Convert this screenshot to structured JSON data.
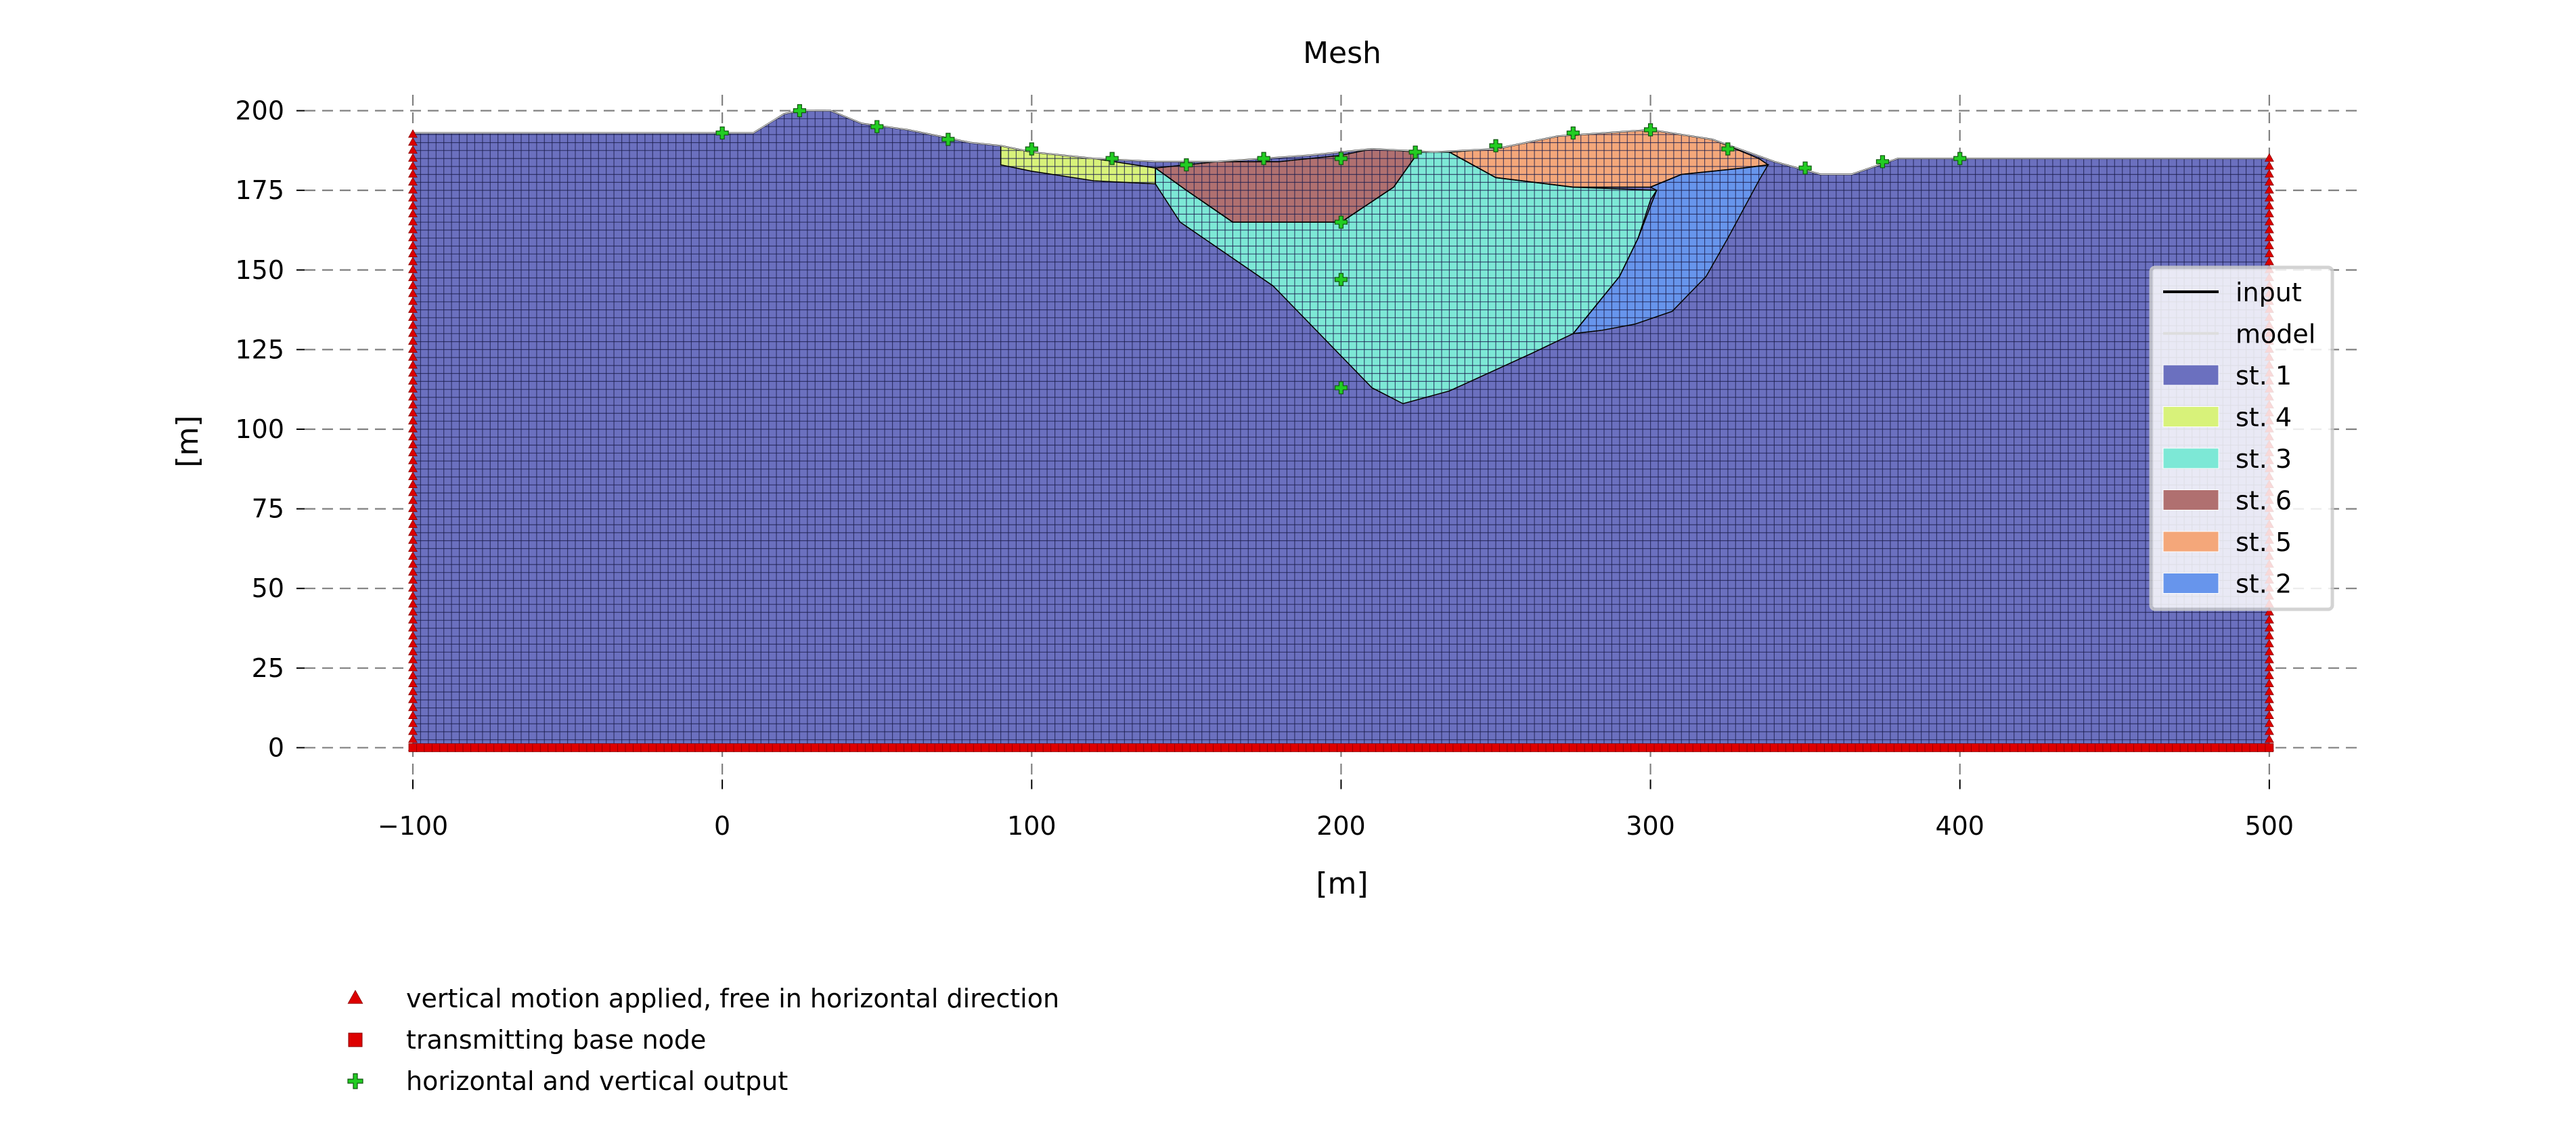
{
  "chart_data": {
    "type": "area",
    "title": "Mesh",
    "xlabel": "[m]",
    "ylabel": "[m]",
    "xlim": [
      -135,
      530
    ],
    "ylim": [
      -15,
      205
    ],
    "xticks": [
      -100,
      0,
      100,
      200,
      300,
      400,
      500
    ],
    "yticks": [
      0,
      25,
      50,
      75,
      100,
      125,
      150,
      175,
      200
    ],
    "grid": true,
    "grid_style": "dashed",
    "legend_position": "right",
    "mesh_spacing_m": 2.5,
    "boundary_line": {
      "name": "input",
      "color": "#000000",
      "points": [
        [
          -100,
          193
        ],
        [
          10,
          193
        ],
        [
          20,
          199
        ],
        [
          25,
          200
        ],
        [
          35,
          200
        ],
        [
          45,
          196
        ],
        [
          60,
          194
        ],
        [
          80,
          190
        ],
        [
          90,
          189
        ],
        [
          100,
          187
        ],
        [
          120,
          185
        ],
        [
          140,
          184
        ],
        [
          160,
          184
        ],
        [
          175,
          185
        ],
        [
          190,
          186
        ],
        [
          210,
          188
        ],
        [
          230,
          187
        ],
        [
          250,
          188
        ],
        [
          270,
          192
        ],
        [
          300,
          194
        ],
        [
          320,
          191
        ],
        [
          340,
          184
        ],
        [
          355,
          180
        ],
        [
          365,
          180
        ],
        [
          380,
          185
        ],
        [
          500,
          185
        ]
      ]
    },
    "model_line": {
      "name": "model",
      "color": "#ffffff"
    },
    "strata": [
      {
        "name": "st. 1",
        "color": "#6b70bf",
        "polygon": [
          [
            -100,
            0
          ],
          [
            500,
            0
          ],
          [
            500,
            185
          ],
          [
            380,
            185
          ],
          [
            365,
            180
          ],
          [
            355,
            180
          ],
          [
            340,
            184
          ],
          [
            320,
            191
          ],
          [
            300,
            194
          ],
          [
            270,
            192
          ],
          [
            250,
            188
          ],
          [
            230,
            187
          ],
          [
            210,
            188
          ],
          [
            190,
            186
          ],
          [
            175,
            185
          ],
          [
            160,
            184
          ],
          [
            140,
            184
          ],
          [
            120,
            185
          ],
          [
            100,
            187
          ],
          [
            90,
            189
          ],
          [
            80,
            190
          ],
          [
            60,
            194
          ],
          [
            45,
            196
          ],
          [
            35,
            200
          ],
          [
            25,
            200
          ],
          [
            20,
            199
          ],
          [
            10,
            193
          ],
          [
            -100,
            193
          ]
        ]
      },
      {
        "name": "st. 4",
        "color": "#d8f27a",
        "polygon": [
          [
            90,
            189
          ],
          [
            100,
            187
          ],
          [
            120,
            185
          ],
          [
            140,
            182
          ],
          [
            140,
            177
          ],
          [
            120,
            178
          ],
          [
            100,
            181
          ],
          [
            90,
            183
          ]
        ]
      },
      {
        "name": "st. 3",
        "color": "#7de8d6",
        "polygon": [
          [
            140,
            177
          ],
          [
            148,
            165
          ],
          [
            160,
            157
          ],
          [
            178,
            145
          ],
          [
            198,
            125
          ],
          [
            210,
            113
          ],
          [
            220,
            108
          ],
          [
            235,
            112
          ],
          [
            262,
            124
          ],
          [
            275,
            130
          ],
          [
            290,
            148
          ],
          [
            296,
            160
          ],
          [
            300,
            172
          ],
          [
            302,
            175
          ],
          [
            275,
            176
          ],
          [
            250,
            179
          ],
          [
            235,
            187
          ],
          [
            225,
            187
          ],
          [
            217,
            176
          ],
          [
            200,
            165
          ],
          [
            165,
            165
          ],
          [
            150,
            175
          ],
          [
            140,
            182
          ]
        ]
      },
      {
        "name": "st. 6",
        "color": "#b07070",
        "polygon": [
          [
            140,
            182
          ],
          [
            160,
            184
          ],
          [
            180,
            184
          ],
          [
            200,
            186
          ],
          [
            210,
            188
          ],
          [
            225,
            187
          ],
          [
            217,
            176
          ],
          [
            200,
            165
          ],
          [
            165,
            165
          ],
          [
            150,
            175
          ]
        ]
      },
      {
        "name": "st. 5",
        "color": "#f4a77a",
        "polygon": [
          [
            235,
            187
          ],
          [
            250,
            188
          ],
          [
            270,
            192
          ],
          [
            300,
            194
          ],
          [
            320,
            191
          ],
          [
            335,
            185
          ],
          [
            338,
            183
          ],
          [
            330,
            182
          ],
          [
            310,
            180
          ],
          [
            300,
            176
          ],
          [
            275,
            176
          ],
          [
            250,
            179
          ]
        ]
      },
      {
        "name": "st. 2",
        "color": "#6795ec",
        "polygon": [
          [
            300,
            176
          ],
          [
            310,
            180
          ],
          [
            330,
            182
          ],
          [
            338,
            183
          ],
          [
            335,
            178
          ],
          [
            325,
            160
          ],
          [
            318,
            148
          ],
          [
            307,
            137
          ],
          [
            295,
            133
          ],
          [
            284,
            131
          ],
          [
            275,
            130
          ],
          [
            290,
            148
          ],
          [
            296,
            160
          ],
          [
            302,
            175
          ]
        ]
      }
    ],
    "input_points": [
      [
        0,
        193
      ],
      [
        25,
        200
      ],
      [
        50,
        195
      ],
      [
        73,
        191
      ],
      [
        100,
        188
      ],
      [
        126,
        185
      ],
      [
        150,
        183
      ],
      [
        175,
        185
      ],
      [
        200,
        185
      ],
      [
        224,
        187
      ],
      [
        250,
        189
      ],
      [
        275,
        193
      ],
      [
        300,
        194
      ],
      [
        325,
        188
      ],
      [
        350,
        182
      ],
      [
        375,
        184
      ],
      [
        400,
        185
      ],
      [
        200,
        165
      ],
      [
        200,
        147
      ],
      [
        200,
        113
      ]
    ],
    "left_boundary": {
      "x": -100,
      "marker": "triangle",
      "color": "#dd0000",
      "y_range": [
        0,
        193
      ]
    },
    "right_boundary": {
      "x": 500,
      "marker": "triangle",
      "color": "#dd0000",
      "y_range": [
        0,
        185
      ]
    },
    "base_nodes": {
      "y": 0,
      "marker": "square",
      "color": "#dd0000",
      "x_range": [
        -100,
        500
      ]
    },
    "output_points": {
      "marker": "plus",
      "color": "#22bb22"
    },
    "legend": [
      "input",
      "model",
      "st. 1",
      "st. 4",
      "st. 3",
      "st. 6",
      "st. 5",
      "st. 2"
    ],
    "marker_legend": [
      {
        "marker": "triangle",
        "color": "#dd0000",
        "label": "vertical motion applied, free in horizontal direction"
      },
      {
        "marker": "square",
        "color": "#dd0000",
        "label": "transmitting base node"
      },
      {
        "marker": "plus",
        "color": "#22bb22",
        "label": "horizontal and vertical output"
      }
    ]
  }
}
